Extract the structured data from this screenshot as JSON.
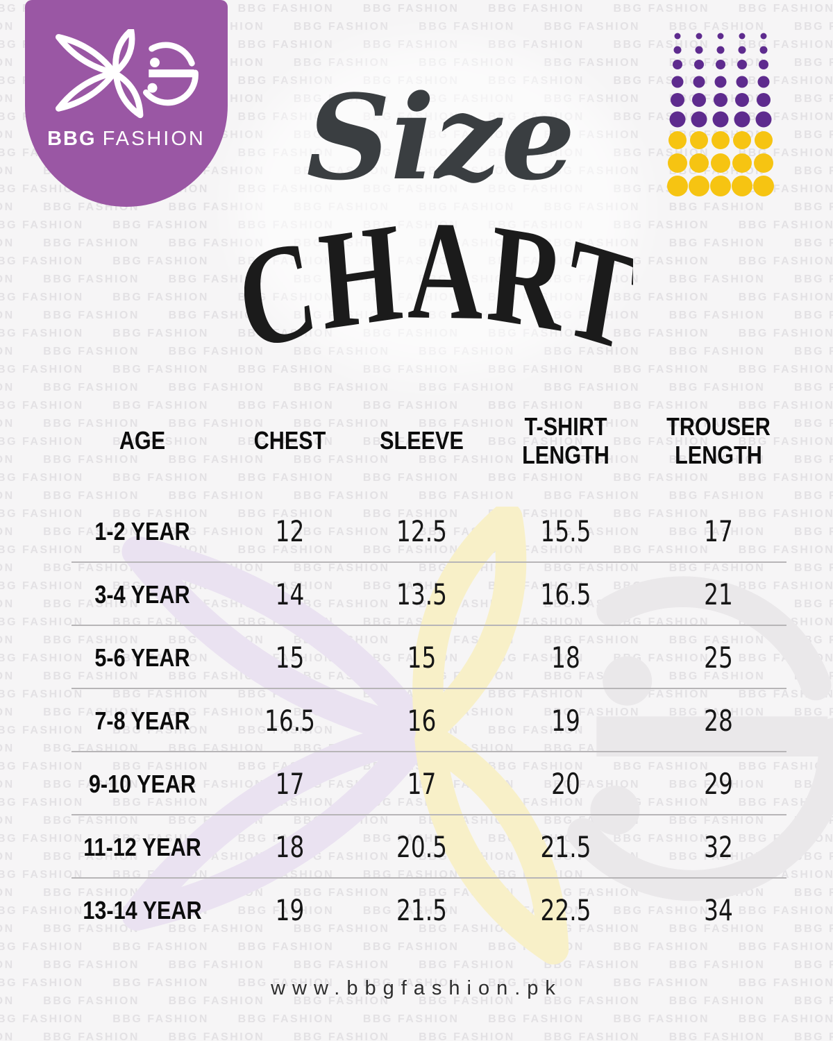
{
  "brand": {
    "name_bold": "BBG",
    "name_light": "FASHION",
    "badge_color": "#9a57a4",
    "logo_white": "#ffffff"
  },
  "title": {
    "script": "Size",
    "main": "CHART",
    "script_color": "#3a3e41",
    "main_color": "#1b1b1b"
  },
  "watermark": {
    "text": "BBG FASHION",
    "text_color": "#e3e1e4",
    "logo_colors": {
      "petals_left": "#eae2f1",
      "petals_right": "#f8f0c8",
      "g_mark": "#eae8ea"
    }
  },
  "decor": {
    "dot_grid": {
      "columns": 5,
      "purple_rows": 6,
      "yellow_rows": 3,
      "purple_color": "#5e2b8e",
      "yellow_color": "#f6c412"
    }
  },
  "chart_data": {
    "type": "table",
    "title": "Size CHART",
    "columns": [
      "AGE",
      "CHEST",
      "SLEEVE",
      "T-SHIRT LENGTH",
      "TROUSER LENGTH"
    ],
    "rows": [
      {
        "age": "1-2 YEAR",
        "chest": 12,
        "sleeve": 12.5,
        "tshirt_length": 15.5,
        "trouser_length": 17
      },
      {
        "age": "3-4 YEAR",
        "chest": 14,
        "sleeve": 13.5,
        "tshirt_length": 16.5,
        "trouser_length": 21
      },
      {
        "age": "5-6 YEAR",
        "chest": 15,
        "sleeve": 15,
        "tshirt_length": 18,
        "trouser_length": 25
      },
      {
        "age": "7-8 YEAR",
        "chest": 16.5,
        "sleeve": 16,
        "tshirt_length": 19,
        "trouser_length": 28
      },
      {
        "age": "9-10 YEAR",
        "chest": 17,
        "sleeve": 17,
        "tshirt_length": 20,
        "trouser_length": 29
      },
      {
        "age": "11-12 YEAR",
        "chest": 18,
        "sleeve": 20.5,
        "tshirt_length": 21.5,
        "trouser_length": 32
      },
      {
        "age": "13-14 YEAR",
        "chest": 19,
        "sleeve": 21.5,
        "tshirt_length": 22.5,
        "trouser_length": 34
      }
    ]
  },
  "footer": {
    "website": "www.bbgfashion.pk"
  }
}
